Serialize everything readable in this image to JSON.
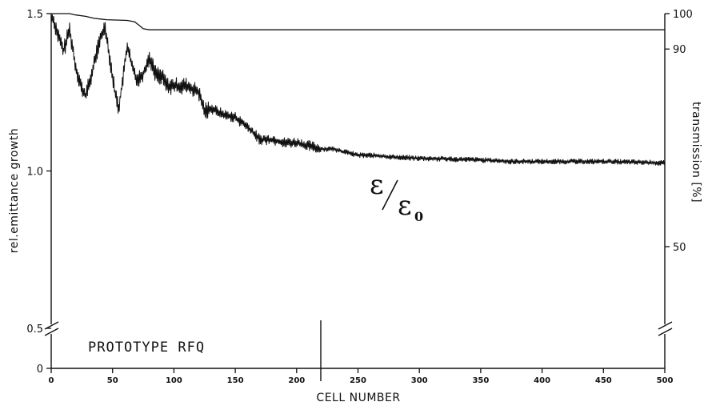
{
  "chart_data": {
    "type": "line",
    "title": "",
    "xlabel": "CELL NUMBER",
    "ylabel_left": "rel.emittance growth",
    "ylabel_right": "transmission [%]",
    "xlim": [
      0,
      500
    ],
    "ylim_left_upper": [
      0.5,
      1.5
    ],
    "ylim_left_lower": [
      0,
      0.5
    ],
    "y_right_ticks": [
      "100",
      "90",
      "50"
    ],
    "x_ticks": [
      "0",
      "50",
      "100",
      "150",
      "200",
      "250",
      "300",
      "350",
      "400",
      "450",
      "500"
    ],
    "y_left_ticks": [
      "1.5",
      "1.0",
      "0.5",
      "0"
    ],
    "axis_break": true,
    "grid": false,
    "annotations": {
      "prototype": "PROTOTYPE RFQ",
      "prototype_marker_cell": 220,
      "ratio_numerator": "ε",
      "ratio_denominator": "ε",
      "ratio_subscript": "0"
    },
    "series": [
      {
        "name": "transmission",
        "axis": "right",
        "x": [
          0,
          15,
          20,
          28,
          35,
          45,
          62,
          68,
          72,
          75,
          80,
          100,
          200,
          300,
          400,
          500
        ],
        "y": [
          100,
          100,
          99.6,
          99.2,
          98.6,
          98.2,
          98.0,
          97.6,
          96.5,
          95.6,
          95.3,
          95.3,
          95.3,
          95.3,
          95.3,
          95.3
        ]
      },
      {
        "name": "ε/ε0",
        "axis": "left",
        "x": [
          0,
          5,
          10,
          15,
          20,
          25,
          28,
          32,
          36,
          40,
          44,
          48,
          52,
          55,
          58,
          62,
          66,
          70,
          75,
          80,
          85,
          90,
          95,
          100,
          110,
          120,
          125,
          130,
          140,
          150,
          160,
          170,
          180,
          190,
          200,
          210,
          220,
          230,
          240,
          250,
          260,
          275,
          300,
          325,
          350,
          375,
          400,
          425,
          450,
          475,
          500
        ],
        "y": [
          1.5,
          1.44,
          1.38,
          1.45,
          1.33,
          1.26,
          1.24,
          1.29,
          1.36,
          1.42,
          1.46,
          1.35,
          1.25,
          1.2,
          1.28,
          1.4,
          1.33,
          1.29,
          1.31,
          1.36,
          1.31,
          1.3,
          1.27,
          1.27,
          1.27,
          1.25,
          1.19,
          1.2,
          1.18,
          1.17,
          1.14,
          1.1,
          1.1,
          1.09,
          1.09,
          1.08,
          1.07,
          1.07,
          1.06,
          1.05,
          1.05,
          1.045,
          1.04,
          1.038,
          1.035,
          1.03,
          1.03,
          1.03,
          1.03,
          1.028,
          1.025
        ]
      }
    ]
  }
}
